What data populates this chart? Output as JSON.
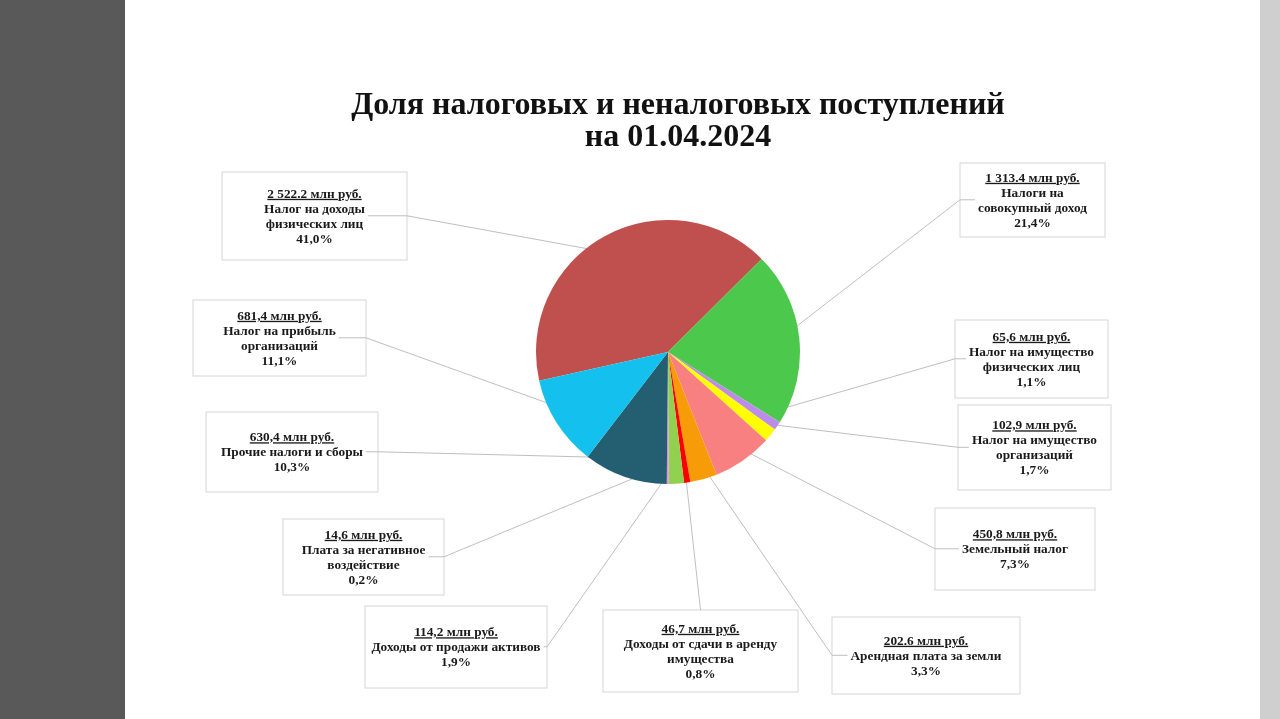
{
  "chart_data": {
    "type": "pie",
    "title": "Доля налоговых и неналоговых поступлений на 01.04.2024",
    "categories": [
      "Налог на доходы физических лиц",
      "Налоги на совокупный доход",
      "Налог на имущество физических лиц",
      "Налог на имущество организаций",
      "Земельный налог",
      "Арендная плата за земли",
      "Доходы от сдачи в аренду имущества",
      "Доходы от продажи активов",
      "Плата за негативное воздействие",
      "Прочие налоги и сборы",
      "Налог на прибыль организаций"
    ],
    "values": [
      2522.2,
      1313.4,
      65.6,
      102.9,
      450.8,
      202.6,
      46.7,
      114.2,
      14.6,
      630.4,
      681.4
    ],
    "colors": [
      "#c0504d",
      "#4cc94c",
      "#bb8de8",
      "#ffff00",
      "#f98080",
      "#f79b09",
      "#ff0000",
      "#92d050",
      "#e68ae6",
      "#235f70",
      "#13c0ee"
    ],
    "value_labels": [
      "2 522.2 млн руб.",
      "1 313.4 млн руб.",
      "65,6 млн руб.",
      "102,9 млн руб.",
      "450,8 млн руб.",
      "202.6 млн руб.",
      "46,7 млн руб.",
      "114,2 млн руб.",
      "14,6 млн руб.",
      "630,4 млн руб.",
      "681,4 млн руб."
    ],
    "annotations": [
      "41,0%",
      "21,4%",
      "1,1%",
      "1,7%",
      "7,3%",
      "3,3%",
      "0,8%",
      "1,9%",
      "0,2%",
      "10,3%",
      "11,1%"
    ]
  }
}
